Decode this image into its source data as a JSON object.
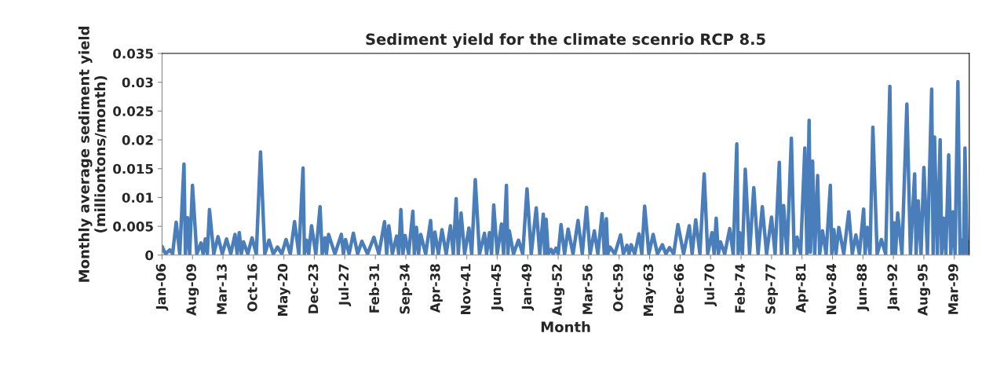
{
  "chart_data": {
    "type": "line",
    "title": "Sediment yield for the climate scenrio RCP 8.5",
    "xlabel": "Month",
    "ylabel": "Monthly average sediment yield (milliontons/month)",
    "x": [
      "2006-01",
      "2006-06",
      "2006-12",
      "2007-04",
      "2007-09",
      "2008-02",
      "2008-08",
      "2008-10",
      "2009-01",
      "2009-04",
      "2009-08",
      "2010-02",
      "2010-08",
      "2010-11",
      "2011-02",
      "2011-05",
      "2011-08",
      "2012-02",
      "2012-08",
      "2013-02",
      "2013-08",
      "2014-02",
      "2014-08",
      "2014-11",
      "2015-02",
      "2015-05",
      "2015-08",
      "2016-02",
      "2016-08",
      "2017-02",
      "2017-08",
      "2018-02",
      "2018-08",
      "2019-02",
      "2019-08",
      "2020-02",
      "2020-08",
      "2021-02",
      "2021-08",
      "2022-02",
      "2022-08",
      "2022-10",
      "2023-01",
      "2023-04",
      "2023-08",
      "2024-02",
      "2024-08",
      "2024-11",
      "2025-03",
      "2025-05",
      "2025-08",
      "2026-05",
      "2027-02",
      "2027-05",
      "2027-08",
      "2028-01",
      "2028-07",
      "2029-01",
      "2029-07",
      "2030-03",
      "2030-12",
      "2031-07",
      "2032-03",
      "2032-06",
      "2032-09",
      "2033-02",
      "2033-08",
      "2033-11",
      "2034-02",
      "2034-05",
      "2034-08",
      "2035-01",
      "2035-07",
      "2035-09",
      "2035-12",
      "2036-03",
      "2036-06",
      "2037-01",
      "2037-08",
      "2037-11",
      "2038-02",
      "2038-07",
      "2038-12",
      "2039-06",
      "2039-12",
      "2040-04",
      "2040-08",
      "2040-11",
      "2041-03",
      "2041-08",
      "2042-02",
      "2042-06",
      "2042-11",
      "2043-05",
      "2043-12",
      "2044-03",
      "2044-07",
      "2044-10",
      "2045-01",
      "2045-06",
      "2045-12",
      "2046-03",
      "2046-07",
      "2046-09",
      "2046-11",
      "2047-05",
      "2047-12",
      "2048-06",
      "2048-12",
      "2049-06",
      "2050-01",
      "2050-06",
      "2050-11",
      "2051-01",
      "2051-03",
      "2051-06",
      "2051-10",
      "2052-01",
      "2052-05",
      "2052-08",
      "2052-12",
      "2053-05",
      "2053-10",
      "2054-05",
      "2054-12",
      "2055-06",
      "2055-12",
      "2056-05",
      "2056-11",
      "2057-04",
      "2057-10",
      "2058-01",
      "2058-04",
      "2058-06",
      "2058-09",
      "2059-04",
      "2059-12",
      "2060-04",
      "2060-09",
      "2060-12",
      "2061-03",
      "2061-08",
      "2062-02",
      "2062-06",
      "2062-10",
      "2063-04",
      "2063-10",
      "2064-04",
      "2064-11",
      "2065-04",
      "2065-09",
      "2066-03",
      "2066-09",
      "2067-05",
      "2068-01",
      "2068-05",
      "2068-10",
      "2069-04",
      "2069-10",
      "2070-03",
      "2070-09",
      "2070-12",
      "2071-03",
      "2071-06",
      "2071-09",
      "2072-03",
      "2072-10",
      "2073-03",
      "2073-08",
      "2073-10",
      "2073-12",
      "2074-04",
      "2074-08",
      "2075-02",
      "2075-08",
      "2076-02",
      "2076-08",
      "2077-02",
      "2077-09",
      "2078-02",
      "2078-08",
      "2078-11",
      "2079-02",
      "2079-07",
      "2080-01",
      "2080-05",
      "2080-09",
      "2081-02",
      "2081-08",
      "2081-11",
      "2082-02",
      "2082-04",
      "2082-07",
      "2082-10",
      "2083-02",
      "2083-05",
      "2083-09",
      "2084-02",
      "2084-08",
      "2084-10",
      "2085-01",
      "2085-04",
      "2085-08",
      "2086-03",
      "2086-10",
      "2087-03",
      "2087-08",
      "2088-01",
      "2088-07",
      "2088-09",
      "2088-12",
      "2089-04",
      "2089-08",
      "2090-02",
      "2090-08",
      "2091-02",
      "2091-08",
      "2091-11",
      "2092-02",
      "2092-04",
      "2092-07",
      "2093-01",
      "2093-08",
      "2094-01",
      "2094-07",
      "2094-09",
      "2094-12",
      "2095-04",
      "2095-08",
      "2096-01",
      "2096-07",
      "2096-09",
      "2096-11",
      "2097-03",
      "2097-07",
      "2097-09",
      "2097-12",
      "2098-03",
      "2098-07",
      "2098-10",
      "2099-01",
      "2099-04",
      "2099-08",
      "2099-11",
      "2100-02",
      "2100-04",
      "2100-06",
      "2100-09",
      "2100-12"
    ],
    "series": [
      {
        "color": "#4a7ebb",
        "values": [
          0.0015,
          0.0002,
          0.0009,
          0.0002,
          0.0057,
          0.0002,
          0.0158,
          0.0002,
          0.0065,
          0.0002,
          0.0121,
          0.0002,
          0.0021,
          0.0002,
          0.0028,
          0.0002,
          0.0079,
          0.0002,
          0.0032,
          0.0002,
          0.0028,
          0.0002,
          0.0036,
          0.0002,
          0.0039,
          0.0002,
          0.0023,
          0.0002,
          0.003,
          0.0002,
          0.0179,
          0.0002,
          0.0026,
          0.0002,
          0.0014,
          0.0002,
          0.0027,
          0.0002,
          0.0058,
          0.0002,
          0.0151,
          0.0002,
          0.0026,
          0.0002,
          0.0051,
          0.0002,
          0.0084,
          0.0002,
          0.003,
          0.0002,
          0.0036,
          0.0002,
          0.0036,
          0.0002,
          0.0027,
          0.0002,
          0.0038,
          0.0002,
          0.0024,
          0.0002,
          0.0031,
          0.0002,
          0.0058,
          0.0002,
          0.0051,
          0.0002,
          0.0033,
          0.0002,
          0.0079,
          0.0002,
          0.0034,
          0.0002,
          0.0076,
          0.0002,
          0.0048,
          0.0002,
          0.0036,
          0.0002,
          0.006,
          0.0002,
          0.004,
          0.0002,
          0.0044,
          0.0002,
          0.0051,
          0.0002,
          0.0098,
          0.0002,
          0.0073,
          0.0002,
          0.0047,
          0.0002,
          0.0131,
          0.0002,
          0.0038,
          0.0002,
          0.0039,
          0.0002,
          0.0087,
          0.0002,
          0.0054,
          0.0002,
          0.0121,
          0.0002,
          0.0042,
          0.0002,
          0.0026,
          0.0002,
          0.0115,
          0.0002,
          0.0082,
          0.0002,
          0.0071,
          0.0002,
          0.0062,
          0.0002,
          0.001,
          0.0002,
          0.0012,
          0.0002,
          0.0053,
          0.0002,
          0.0045,
          0.0002,
          0.006,
          0.0002,
          0.0083,
          0.0002,
          0.0042,
          0.0002,
          0.0072,
          0.0002,
          0.0063,
          0.0002,
          0.0014,
          0.0002,
          0.0035,
          0.0002,
          0.0017,
          0.0002,
          0.0018,
          0.0002,
          0.0037,
          0.0002,
          0.0085,
          0.0002,
          0.0036,
          0.0002,
          0.0018,
          0.0002,
          0.0013,
          0.0002,
          0.0053,
          0.0002,
          0.0051,
          0.0002,
          0.0061,
          0.0002,
          0.0141,
          0.0002,
          0.0039,
          0.0002,
          0.0064,
          0.0002,
          0.0023,
          0.0002,
          0.0046,
          0.0002,
          0.0193,
          0.0002,
          0.0039,
          0.0002,
          0.0149,
          0.0002,
          0.0117,
          0.0002,
          0.0084,
          0.0002,
          0.0066,
          0.0002,
          0.0161,
          0.0002,
          0.0086,
          0.0002,
          0.0203,
          0.0002,
          0.0031,
          0.0002,
          0.0186,
          0.0002,
          0.0234,
          0.0005,
          0.0163,
          0.0002,
          0.0138,
          0.0002,
          0.0042,
          0.0002,
          0.0121,
          0.0002,
          0.0044,
          0.0002,
          0.0048,
          0.0002,
          0.0075,
          0.0002,
          0.0035,
          0.0002,
          0.008,
          0.0002,
          0.0048,
          0.0002,
          0.0222,
          0.0002,
          0.0027,
          0.0002,
          0.0293,
          0.0002,
          0.0056,
          0.0002,
          0.0073,
          0.0002,
          0.0262,
          0.0002,
          0.0141,
          0.0002,
          0.0094,
          0.0002,
          0.0152,
          0.0002,
          0.0288,
          0.0002,
          0.0205,
          0.0002,
          0.02,
          0.0002,
          0.0064,
          0.0002,
          0.0174,
          0.0002,
          0.0075,
          0.0002,
          0.0301,
          0.0002,
          0.0026,
          0.0002,
          0.0186,
          0.0002,
          0.0023
        ]
      }
    ],
    "xlim": [
      "2006-01",
      "2100-12"
    ],
    "xticks": [
      {
        "value": "2006-01",
        "label": "Jan-06"
      },
      {
        "value": "2009-08",
        "label": "Aug-09"
      },
      {
        "value": "2013-03",
        "label": "Mar-13"
      },
      {
        "value": "2016-10",
        "label": "Oct-16"
      },
      {
        "value": "2020-05",
        "label": "May-20"
      },
      {
        "value": "2023-12",
        "label": "Dec-23"
      },
      {
        "value": "2027-07",
        "label": "Jul-27"
      },
      {
        "value": "2031-02",
        "label": "Feb-31"
      },
      {
        "value": "2034-09",
        "label": "Sep-34"
      },
      {
        "value": "2038-04",
        "label": "Apr-38"
      },
      {
        "value": "2041-11",
        "label": "Nov-41"
      },
      {
        "value": "2045-06",
        "label": "Jun-45"
      },
      {
        "value": "2049-01",
        "label": "Jan-49"
      },
      {
        "value": "2052-08",
        "label": "Aug-52"
      },
      {
        "value": "2056-03",
        "label": "Mar-56"
      },
      {
        "value": "2059-10",
        "label": "Oct-59"
      },
      {
        "value": "2063-05",
        "label": "May-63"
      },
      {
        "value": "2066-12",
        "label": "Dec-66"
      },
      {
        "value": "2070-07",
        "label": "Jul-70"
      },
      {
        "value": "2074-02",
        "label": "Feb-74"
      },
      {
        "value": "2077-09",
        "label": "Sep-77"
      },
      {
        "value": "2081-04",
        "label": "Apr-81"
      },
      {
        "value": "2084-11",
        "label": "Nov-84"
      },
      {
        "value": "2088-06",
        "label": "Jun-88"
      },
      {
        "value": "2092-01",
        "label": "Jan-92"
      },
      {
        "value": "2095-08",
        "label": "Aug-95"
      },
      {
        "value": "2099-03",
        "label": "Mar-99"
      }
    ],
    "ylim": [
      0,
      0.035
    ],
    "yticks": [
      0,
      0.005,
      0.01,
      0.015,
      0.02,
      0.025,
      0.03,
      0.035
    ],
    "grid": false,
    "marker": "none",
    "line_style": "solid"
  }
}
